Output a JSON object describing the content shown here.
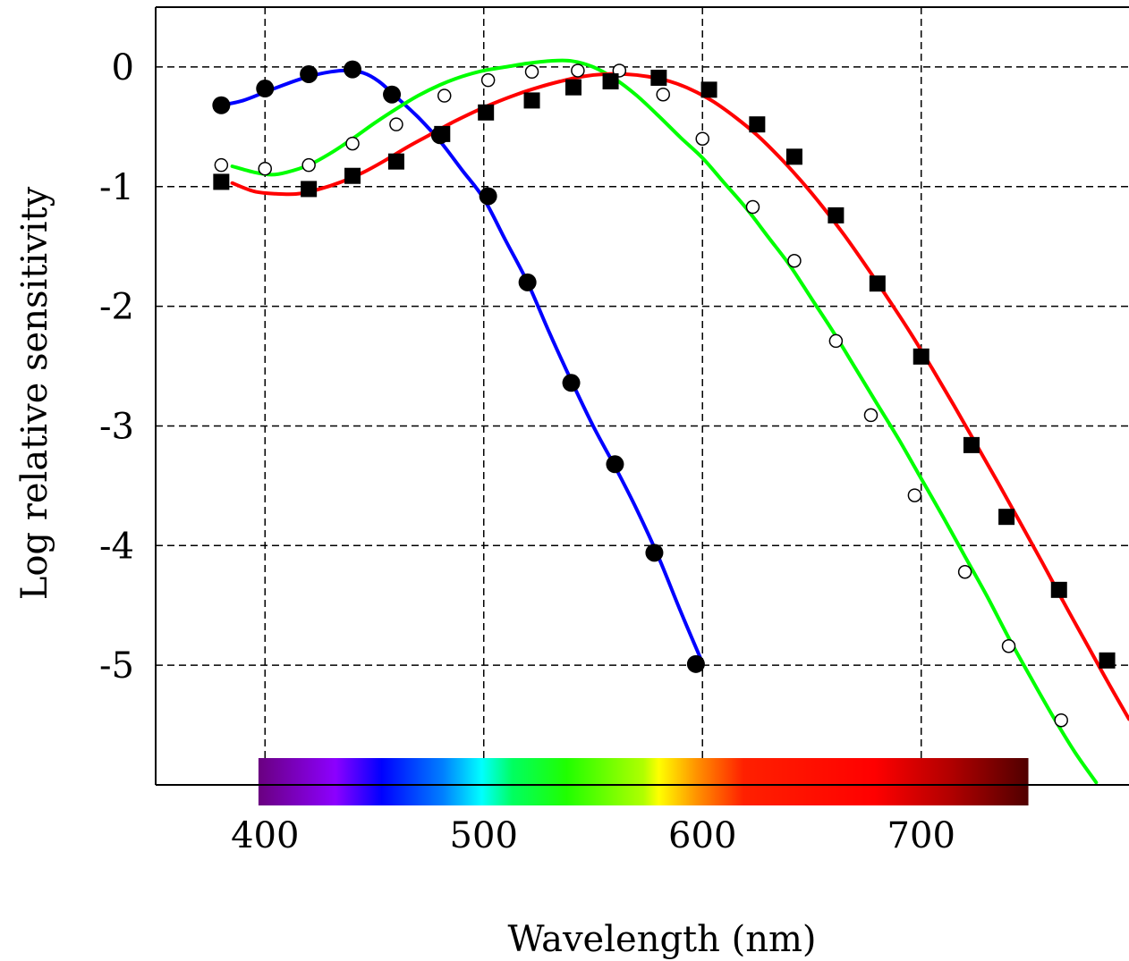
{
  "chart_data": {
    "type": "line",
    "title": "",
    "xlabel": "Wavelength (nm)",
    "ylabel": "Log relative sensitivity",
    "xlim": [
      350,
      795
    ],
    "ylim": [
      -6.0,
      0.5
    ],
    "x_ticks": [
      {
        "value": 400,
        "label": "400"
      },
      {
        "value": 500,
        "label": "500"
      },
      {
        "value": 600,
        "label": "600"
      },
      {
        "value": 700,
        "label": "700"
      }
    ],
    "y_ticks": [
      {
        "value": 0,
        "label": "0"
      },
      {
        "value": -1,
        "label": "-1"
      },
      {
        "value": -2,
        "label": "-2"
      },
      {
        "value": -3,
        "label": "-3"
      },
      {
        "value": -4,
        "label": "-4"
      },
      {
        "value": -5,
        "label": "-5"
      }
    ],
    "grid": true,
    "legend": "none",
    "spectrum_bar": {
      "from": 397,
      "to": 749
    },
    "series": [
      {
        "color": "#0000ff",
        "marker": "filled-circle",
        "curve": [
          [
            380,
            -0.32
          ],
          [
            390,
            -0.28
          ],
          [
            400,
            -0.21
          ],
          [
            410,
            -0.14
          ],
          [
            420,
            -0.08
          ],
          [
            430,
            -0.04
          ],
          [
            437,
            -0.03
          ],
          [
            445,
            -0.05
          ],
          [
            452,
            -0.12
          ],
          [
            460,
            -0.25
          ],
          [
            470,
            -0.42
          ],
          [
            480,
            -0.62
          ],
          [
            490,
            -0.86
          ],
          [
            500,
            -1.1
          ],
          [
            510,
            -1.45
          ],
          [
            520,
            -1.8
          ],
          [
            530,
            -2.22
          ],
          [
            540,
            -2.62
          ],
          [
            550,
            -3.0
          ],
          [
            560,
            -3.34
          ],
          [
            570,
            -3.7
          ],
          [
            580,
            -4.1
          ],
          [
            590,
            -4.55
          ],
          [
            600,
            -4.98
          ]
        ],
        "points": [
          [
            380,
            -0.32
          ],
          [
            400,
            -0.18
          ],
          [
            420,
            -0.06
          ],
          [
            440,
            -0.02
          ],
          [
            458,
            -0.23
          ],
          [
            480,
            -0.57
          ],
          [
            502,
            -1.08
          ],
          [
            520,
            -1.8
          ],
          [
            540,
            -2.64
          ],
          [
            560,
            -3.32
          ],
          [
            578,
            -4.06
          ],
          [
            597,
            -4.99
          ]
        ]
      },
      {
        "color": "#00ff00",
        "marker": "open-circle",
        "curve": [
          [
            385,
            -0.83
          ],
          [
            395,
            -0.88
          ],
          [
            403,
            -0.9
          ],
          [
            410,
            -0.88
          ],
          [
            420,
            -0.82
          ],
          [
            430,
            -0.72
          ],
          [
            440,
            -0.6
          ],
          [
            450,
            -0.47
          ],
          [
            460,
            -0.35
          ],
          [
            470,
            -0.24
          ],
          [
            480,
            -0.15
          ],
          [
            490,
            -0.08
          ],
          [
            500,
            -0.03
          ],
          [
            510,
            0.0
          ],
          [
            520,
            0.03
          ],
          [
            530,
            0.05
          ],
          [
            540,
            0.05
          ],
          [
            550,
            0.0
          ],
          [
            560,
            -0.1
          ],
          [
            570,
            -0.24
          ],
          [
            580,
            -0.41
          ],
          [
            590,
            -0.59
          ],
          [
            600,
            -0.76
          ],
          [
            610,
            -0.97
          ],
          [
            620,
            -1.18
          ],
          [
            630,
            -1.42
          ],
          [
            640,
            -1.66
          ],
          [
            650,
            -1.94
          ],
          [
            660,
            -2.22
          ],
          [
            670,
            -2.52
          ],
          [
            680,
            -2.82
          ],
          [
            690,
            -3.12
          ],
          [
            700,
            -3.44
          ],
          [
            710,
            -3.76
          ],
          [
            720,
            -4.09
          ],
          [
            730,
            -4.42
          ],
          [
            740,
            -4.77
          ],
          [
            750,
            -5.1
          ],
          [
            760,
            -5.42
          ],
          [
            770,
            -5.72
          ],
          [
            780,
            -5.98
          ]
        ],
        "points": [
          [
            380,
            -0.82
          ],
          [
            400,
            -0.85
          ],
          [
            420,
            -0.82
          ],
          [
            440,
            -0.64
          ],
          [
            460,
            -0.48
          ],
          [
            482,
            -0.24
          ],
          [
            502,
            -0.11
          ],
          [
            522,
            -0.04
          ],
          [
            543,
            -0.03
          ],
          [
            562,
            -0.03
          ],
          [
            582,
            -0.23
          ],
          [
            600,
            -0.6
          ],
          [
            623,
            -1.17
          ],
          [
            642,
            -1.62
          ],
          [
            661,
            -2.29
          ],
          [
            677,
            -2.91
          ],
          [
            697,
            -3.58
          ],
          [
            720,
            -4.22
          ],
          [
            740,
            -4.84
          ],
          [
            764,
            -5.46
          ]
        ]
      },
      {
        "color": "#ff0000",
        "marker": "filled-square",
        "curve": [
          [
            385,
            -0.97
          ],
          [
            395,
            -1.04
          ],
          [
            405,
            -1.06
          ],
          [
            415,
            -1.06
          ],
          [
            425,
            -1.02
          ],
          [
            435,
            -0.96
          ],
          [
            445,
            -0.88
          ],
          [
            455,
            -0.78
          ],
          [
            465,
            -0.67
          ],
          [
            475,
            -0.57
          ],
          [
            485,
            -0.47
          ],
          [
            495,
            -0.38
          ],
          [
            505,
            -0.3
          ],
          [
            515,
            -0.23
          ],
          [
            525,
            -0.17
          ],
          [
            535,
            -0.12
          ],
          [
            545,
            -0.08
          ],
          [
            555,
            -0.06
          ],
          [
            565,
            -0.06
          ],
          [
            575,
            -0.08
          ],
          [
            585,
            -0.12
          ],
          [
            595,
            -0.19
          ],
          [
            605,
            -0.29
          ],
          [
            615,
            -0.42
          ],
          [
            625,
            -0.57
          ],
          [
            635,
            -0.75
          ],
          [
            645,
            -0.95
          ],
          [
            655,
            -1.17
          ],
          [
            665,
            -1.41
          ],
          [
            675,
            -1.67
          ],
          [
            685,
            -1.94
          ],
          [
            695,
            -2.22
          ],
          [
            705,
            -2.52
          ],
          [
            715,
            -2.83
          ],
          [
            725,
            -3.15
          ],
          [
            735,
            -3.47
          ],
          [
            745,
            -3.8
          ],
          [
            755,
            -4.13
          ],
          [
            765,
            -4.47
          ],
          [
            775,
            -4.8
          ],
          [
            785,
            -5.13
          ],
          [
            795,
            -5.45
          ]
        ],
        "points": [
          [
            380,
            -0.96
          ],
          [
            420,
            -1.02
          ],
          [
            440,
            -0.91
          ],
          [
            460,
            -0.79
          ],
          [
            481,
            -0.56
          ],
          [
            501,
            -0.38
          ],
          [
            522,
            -0.28
          ],
          [
            541,
            -0.17
          ],
          [
            558,
            -0.12
          ],
          [
            580,
            -0.09
          ],
          [
            603,
            -0.19
          ],
          [
            625,
            -0.48
          ],
          [
            642,
            -0.75
          ],
          [
            661,
            -1.24
          ],
          [
            680,
            -1.81
          ],
          [
            700,
            -2.42
          ],
          [
            723,
            -3.16
          ],
          [
            739,
            -3.76
          ],
          [
            763,
            -4.37
          ],
          [
            785,
            -4.96
          ]
        ]
      }
    ]
  }
}
